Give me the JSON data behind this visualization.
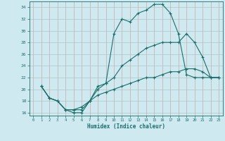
{
  "xlabel": "Humidex (Indice chaleur)",
  "background_color": "#ceeaf0",
  "grid_color": "#b0cccc",
  "line_color": "#1a6e6a",
  "xlim": [
    -0.5,
    23.5
  ],
  "ylim": [
    15.5,
    35.0
  ],
  "xticks": [
    0,
    1,
    2,
    3,
    4,
    5,
    6,
    7,
    8,
    9,
    10,
    11,
    12,
    13,
    14,
    15,
    16,
    17,
    18,
    19,
    20,
    21,
    22,
    23
  ],
  "yticks": [
    16,
    18,
    20,
    22,
    24,
    26,
    28,
    30,
    32,
    34
  ],
  "line1_x": [
    1,
    2,
    3,
    4,
    5,
    6,
    7,
    8,
    9,
    10,
    11,
    12,
    13,
    14,
    15,
    16,
    17,
    18,
    19,
    20,
    21,
    22,
    23
  ],
  "line1_y": [
    20.5,
    18.5,
    18.0,
    16.5,
    16.0,
    16.0,
    18.0,
    20.5,
    21.0,
    29.5,
    32.0,
    31.5,
    33.0,
    33.5,
    34.5,
    34.5,
    33.0,
    29.5,
    22.5,
    22.0,
    22.0,
    22.0,
    22.0
  ],
  "line2_x": [
    1,
    2,
    3,
    4,
    5,
    6,
    7,
    8,
    9,
    10,
    11,
    12,
    13,
    14,
    15,
    16,
    17,
    18,
    19,
    20,
    21,
    22,
    23
  ],
  "line2_y": [
    20.5,
    18.5,
    18.0,
    16.5,
    16.5,
    16.5,
    18.0,
    20.0,
    21.0,
    22.0,
    24.0,
    25.0,
    26.0,
    27.0,
    27.5,
    28.0,
    28.0,
    28.0,
    29.5,
    28.0,
    25.5,
    22.0,
    22.0
  ],
  "line3_x": [
    1,
    2,
    3,
    4,
    5,
    6,
    7,
    8,
    9,
    10,
    11,
    12,
    13,
    14,
    15,
    16,
    17,
    18,
    19,
    20,
    21,
    22,
    23
  ],
  "line3_y": [
    20.5,
    18.5,
    18.0,
    16.5,
    16.5,
    17.0,
    18.0,
    19.0,
    19.5,
    20.0,
    20.5,
    21.0,
    21.5,
    22.0,
    22.0,
    22.5,
    23.0,
    23.0,
    23.5,
    23.5,
    23.0,
    22.0,
    22.0
  ]
}
